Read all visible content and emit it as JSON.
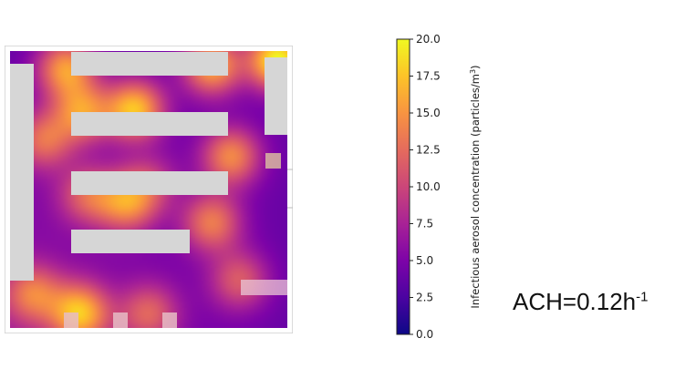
{
  "chart_data": {
    "type": "heatmap",
    "title": "",
    "colorbar": {
      "label_main": "Infectious aerosol concentration (particles/m",
      "label_sup": "3",
      "label_end": ")",
      "range": [
        0.0,
        20.0
      ],
      "ticks": [
        "0.0",
        "2.5",
        "5.0",
        "7.5",
        "10.0",
        "12.5",
        "15.0",
        "17.5",
        "20.0"
      ],
      "colormap": "plasma"
    },
    "hotspots": [
      {
        "x": 0.2,
        "y": 0.06,
        "value": 15
      },
      {
        "x": 0.45,
        "y": 0.21,
        "value": 17
      },
      {
        "x": 0.26,
        "y": 0.22,
        "value": 14
      },
      {
        "x": 0.73,
        "y": 0.05,
        "value": 16
      },
      {
        "x": 0.97,
        "y": 0.03,
        "value": 20
      },
      {
        "x": 0.8,
        "y": 0.38,
        "value": 14
      },
      {
        "x": 0.73,
        "y": 0.62,
        "value": 13
      },
      {
        "x": 0.42,
        "y": 0.55,
        "value": 13
      },
      {
        "x": 0.28,
        "y": 0.52,
        "value": 11
      },
      {
        "x": 0.5,
        "y": 0.48,
        "value": 9
      },
      {
        "x": 0.25,
        "y": 0.95,
        "value": 16
      },
      {
        "x": 0.08,
        "y": 0.88,
        "value": 12
      },
      {
        "x": 0.5,
        "y": 0.95,
        "value": 11
      },
      {
        "x": 0.83,
        "y": 0.83,
        "value": 11
      },
      {
        "x": 0.12,
        "y": 0.32,
        "value": 12
      }
    ],
    "base_value": 4
  },
  "annotation": {
    "main": "ACH=0.12h",
    "sup": "-1"
  }
}
